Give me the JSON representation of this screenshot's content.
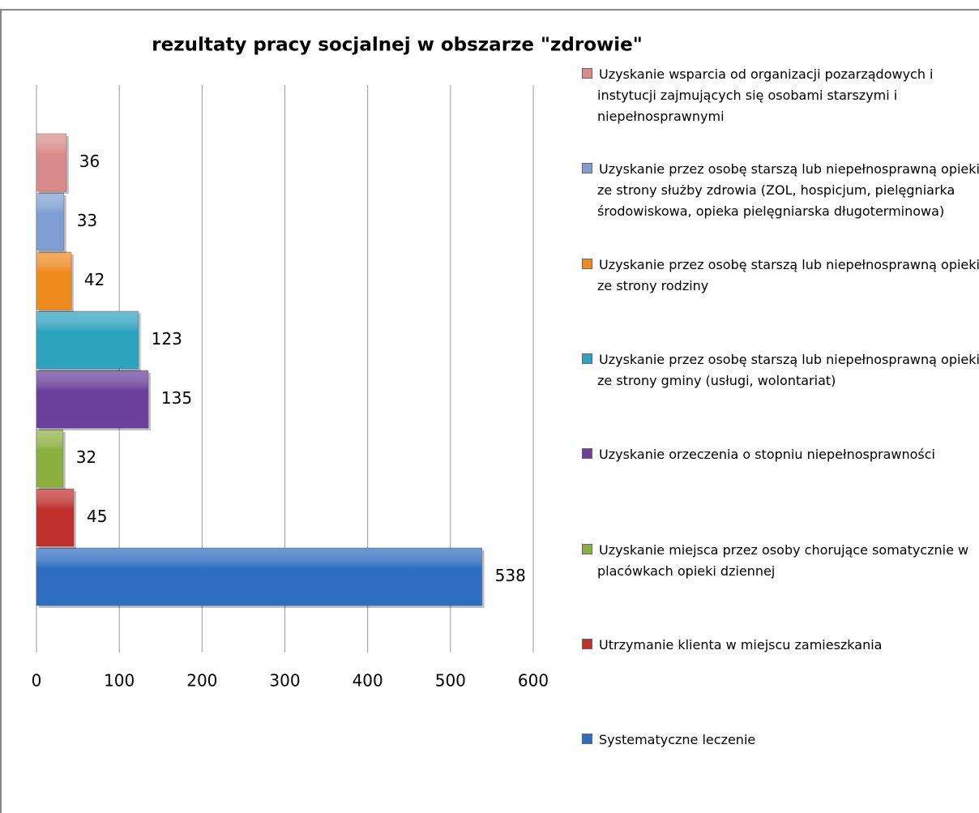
{
  "chart_data": {
    "type": "bar",
    "orientation": "horizontal",
    "title": "rezultaty pracy socjalnej  w obszarze \"zdrowie\"",
    "categories": [
      null
    ],
    "series": [
      {
        "name": "Systematyczne leczenie",
        "color": "#2f6fc2",
        "values": [
          538
        ]
      },
      {
        "name": "Utrzymanie klienta w miejscu zamieszkania",
        "color": "#c0312e",
        "values": [
          45
        ]
      },
      {
        "name": "Uzyskanie miejsca przez osoby chorujące somatycznie w placówkach opieki dziennej",
        "color": "#8db13f",
        "values": [
          32
        ]
      },
      {
        "name": "Uzyskanie orzeczenia o stopniu niepełnosprawności",
        "color": "#6b3f9c",
        "values": [
          135
        ]
      },
      {
        "name": "Uzyskanie przez osobę starszą lub niepełnosprawną opieki  ze strony gminy (usługi, wolontariat)",
        "color": "#2ea3bf",
        "values": [
          123
        ]
      },
      {
        "name": "Uzyskanie przez osobę starszą lub niepełnosprawną opieki ze strony rodziny",
        "color": "#ef8a1e",
        "values": [
          42
        ]
      },
      {
        "name": "Uzyskanie przez osobę starszą lub niepełnosprawną opieki ze strony służby  zdrowia (ZOL, hospicjum, pielęgniarka środowiskowa, opieka pielęgniarska długoterminowa)",
        "color": "#7f9fd2",
        "values": [
          33
        ]
      },
      {
        "name": "Uzyskanie wsparcia od organizacji pozarządowych i instytucji zajmujących się osobami starszymi i niepełnosprawnymi",
        "color": "#d98b8a",
        "values": [
          36
        ]
      }
    ],
    "xlim": [
      0,
      600
    ],
    "xticks": [
      0,
      100,
      200,
      300,
      400,
      500,
      600
    ],
    "grid": true,
    "legend": "right"
  }
}
